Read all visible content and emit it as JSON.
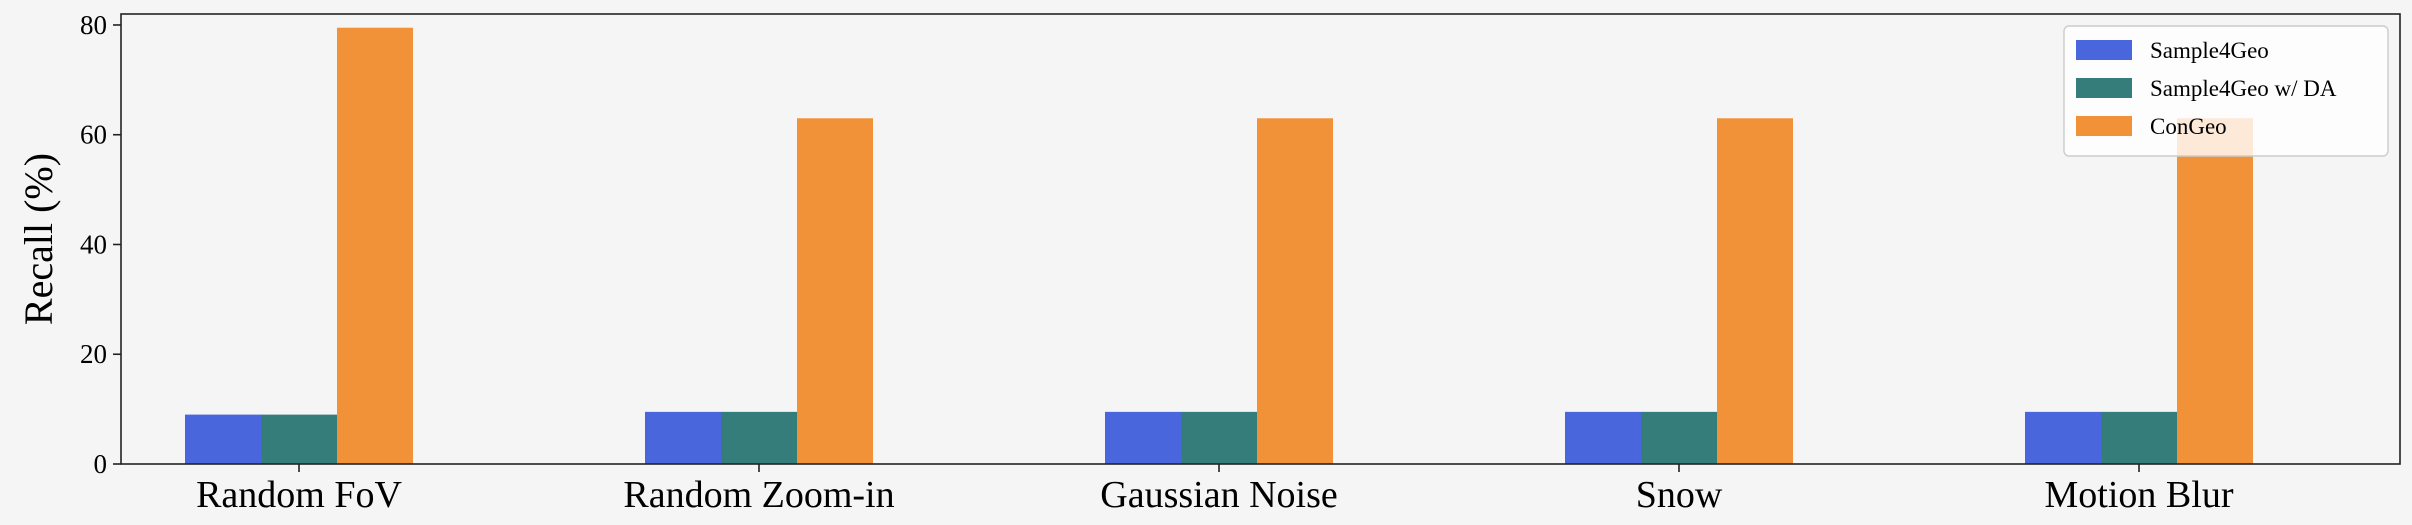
{
  "chart_data": {
    "type": "bar",
    "title": "",
    "xlabel": "",
    "ylabel": "Recall (%)",
    "ylim": [
      0,
      82
    ],
    "yticks": [
      0,
      20,
      40,
      60,
      80
    ],
    "grid": false,
    "legend_position": "top-right",
    "categories": [
      "Random FoV",
      "Random Zoom-in",
      "Gaussian Noise",
      "Snow",
      "Motion Blur"
    ],
    "series": [
      {
        "name": "Sample4Geo",
        "color": "#4a66dd",
        "values": [
          9.0,
          9.5,
          9.5,
          9.5,
          9.5
        ]
      },
      {
        "name": "Sample4Geo w/ DA",
        "color": "#357d7b",
        "values": [
          9.0,
          9.5,
          9.5,
          9.5,
          9.5
        ]
      },
      {
        "name": "ConGeo",
        "color": "#f29238",
        "values": [
          79.5,
          63.0,
          63.0,
          63.0,
          63.0
        ]
      }
    ]
  }
}
